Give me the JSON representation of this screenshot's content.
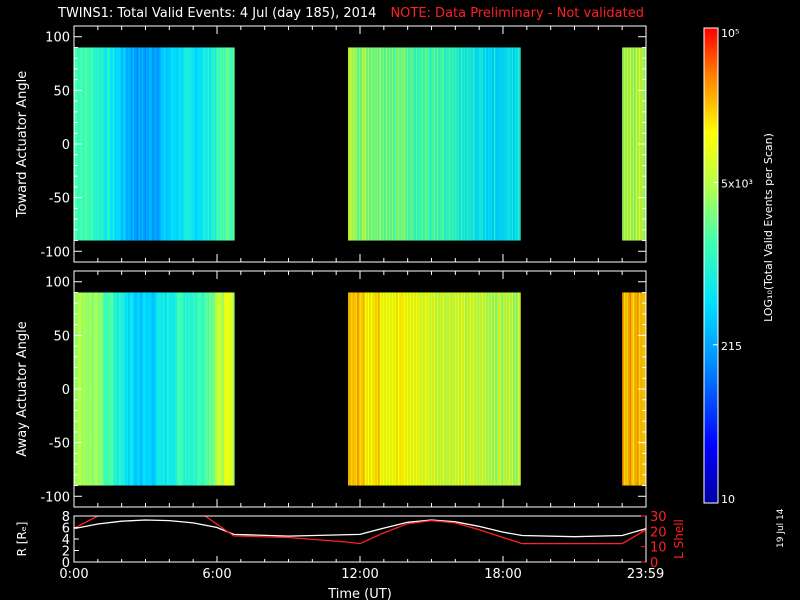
{
  "header": {
    "title": "TWINS1: Total Valid Events:  4 Jul (day 185), 2014",
    "note": "NOTE: Data Preliminary - Not validated"
  },
  "colorbar": {
    "label": "LOG₁₀(Total Valid Events per Scan)",
    "ticks": [
      {
        "value": 100000,
        "text": "10⁵"
      },
      {
        "value": 5000,
        "text": "5x10³"
      },
      {
        "value": 215,
        "text": "215"
      },
      {
        "value": 10,
        "text": "10"
      }
    ],
    "scale": "log",
    "range": [
      10,
      100000
    ]
  },
  "stamp": "19 Jul 14",
  "chart_data": [
    {
      "type": "heatmap",
      "ylabel": "Toward Actuator Angle",
      "ylim": [
        -110,
        110
      ],
      "yticks": [
        100,
        50,
        0,
        -50,
        -100
      ],
      "angle_range": [
        -90,
        90
      ],
      "xlim_hours": [
        0,
        24
      ],
      "segments": [
        {
          "start_h": 0.0,
          "end_h": 6.7
        },
        {
          "start_h": 11.5,
          "end_h": 18.7
        },
        {
          "start_h": 23.0,
          "end_h": 24.0
        }
      ],
      "profile": [
        [
          0.0,
          1800
        ],
        [
          0.5,
          1500
        ],
        [
          1.0,
          1100
        ],
        [
          1.5,
          700
        ],
        [
          2.0,
          350
        ],
        [
          2.5,
          220
        ],
        [
          3.0,
          200
        ],
        [
          3.5,
          260
        ],
        [
          4.0,
          400
        ],
        [
          4.5,
          600
        ],
        [
          5.0,
          500
        ],
        [
          5.5,
          700
        ],
        [
          6.0,
          1200
        ],
        [
          6.6,
          2500
        ],
        [
          11.5,
          4500
        ],
        [
          12.0,
          3800
        ],
        [
          13.0,
          3000
        ],
        [
          14.0,
          2200
        ],
        [
          15.0,
          1500
        ],
        [
          16.0,
          900
        ],
        [
          17.0,
          600
        ],
        [
          18.0,
          500
        ],
        [
          18.7,
          700
        ],
        [
          23.0,
          5500
        ],
        [
          24.0,
          5000
        ]
      ]
    },
    {
      "type": "heatmap",
      "ylabel": "Away Actuator Angle",
      "ylim": [
        -110,
        110
      ],
      "yticks": [
        100,
        50,
        0,
        -50,
        -100
      ],
      "angle_range": [
        -90,
        90
      ],
      "xlim_hours": [
        0,
        24
      ],
      "segments": [
        {
          "start_h": 0.0,
          "end_h": 6.7
        },
        {
          "start_h": 11.5,
          "end_h": 18.7
        },
        {
          "start_h": 23.0,
          "end_h": 24.0
        }
      ],
      "profile": [
        [
          0.0,
          5000
        ],
        [
          0.5,
          4200
        ],
        [
          1.0,
          2800
        ],
        [
          1.5,
          1500
        ],
        [
          2.0,
          700
        ],
        [
          2.5,
          400
        ],
        [
          3.0,
          380
        ],
        [
          3.5,
          500
        ],
        [
          4.0,
          800
        ],
        [
          4.5,
          1300
        ],
        [
          5.0,
          1100
        ],
        [
          5.5,
          2000
        ],
        [
          6.0,
          4500
        ],
        [
          6.6,
          9000
        ],
        [
          11.5,
          25000
        ],
        [
          12.0,
          20000
        ],
        [
          13.0,
          15000
        ],
        [
          14.0,
          11000
        ],
        [
          15.0,
          8000
        ],
        [
          16.0,
          6500
        ],
        [
          17.0,
          5500
        ],
        [
          18.0,
          5000
        ],
        [
          18.7,
          5200
        ],
        [
          23.0,
          30000
        ],
        [
          24.0,
          25000
        ]
      ]
    },
    {
      "type": "line",
      "xlabel": "Time (UT)",
      "xticks": [
        {
          "hour": 0,
          "text": "0:00"
        },
        {
          "hour": 6,
          "text": "6:00"
        },
        {
          "hour": 12,
          "text": "12:00"
        },
        {
          "hour": 18,
          "text": "18:00"
        },
        {
          "hour": 23.983,
          "text": "23:59"
        }
      ],
      "left_axis": {
        "label": "R [Rₑ]",
        "ylim": [
          0,
          8
        ],
        "ticks": [
          0,
          2,
          4,
          6,
          8
        ]
      },
      "right_axis": {
        "label": "L Shell",
        "ylim": [
          0,
          30
        ],
        "ticks": [
          0,
          10,
          20,
          30
        ]
      },
      "series": [
        {
          "axis": "left",
          "color": "#ffffff",
          "points": [
            [
              0,
              5.8
            ],
            [
              1,
              6.6
            ],
            [
              2,
              7.1
            ],
            [
              3,
              7.3
            ],
            [
              4,
              7.2
            ],
            [
              5,
              6.8
            ],
            [
              6,
              6.0
            ],
            [
              6.7,
              4.8
            ],
            [
              9,
              4.5
            ],
            [
              12,
              4.8
            ],
            [
              13,
              5.9
            ],
            [
              14,
              6.9
            ],
            [
              15,
              7.3
            ],
            [
              16,
              7.0
            ],
            [
              17,
              6.2
            ],
            [
              18,
              5.2
            ],
            [
              18.8,
              4.6
            ],
            [
              21,
              4.4
            ],
            [
              23,
              4.6
            ],
            [
              24,
              5.8
            ]
          ]
        },
        {
          "axis": "right",
          "color": "#ff2020",
          "points": [
            [
              0,
              22
            ],
            [
              1,
              30
            ],
            [
              2,
              31
            ],
            [
              5,
              31
            ],
            [
              5.5,
              30
            ],
            [
              6.7,
              17
            ],
            [
              9,
              16
            ],
            [
              11.5,
              13
            ],
            [
              12,
              12
            ],
            [
              13,
              19
            ],
            [
              14,
              25
            ],
            [
              15,
              27
            ],
            [
              16,
              25.5
            ],
            [
              17,
              21
            ],
            [
              18,
              16
            ],
            [
              18.8,
              12
            ],
            [
              21,
              12
            ],
            [
              23,
              12
            ],
            [
              24,
              21
            ]
          ]
        }
      ]
    }
  ]
}
